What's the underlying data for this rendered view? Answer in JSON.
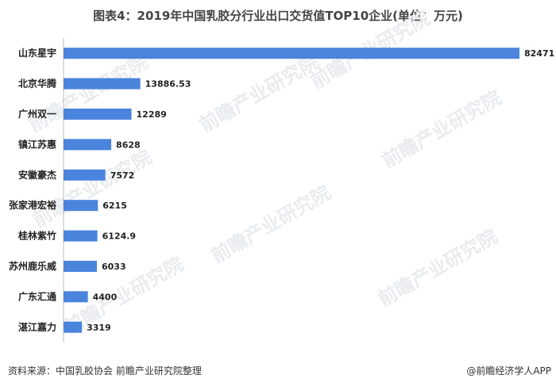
{
  "chart_data": {
    "type": "bar",
    "orientation": "horizontal",
    "title": "图表4：2019年中国乳胶分行业出口交货值TOP10企业(单位：万元)",
    "categories": [
      "山东星宇",
      "北京华腾",
      "广州双一",
      "镇江苏惠",
      "安徽豪杰",
      "张家港宏裕",
      "桂林紫竹",
      "苏州鹿乐威",
      "广东汇通",
      "湛江嘉力"
    ],
    "values": [
      82471,
      13886.53,
      12289,
      8628,
      7572,
      6215,
      6124.9,
      6033,
      4400,
      3319
    ],
    "value_labels": [
      "82471",
      "13886.53",
      "12289",
      "8628",
      "7572",
      "6215",
      "6124.9",
      "6033",
      "4400",
      "3319"
    ],
    "xlim": [
      0,
      82471
    ],
    "grid": false,
    "legend": "none",
    "bar_color": "#4a84dc"
  },
  "footer": {
    "source": "资料来源：中国乳胶协会  前瞻产业研究院整理",
    "brand": "@前瞻经济学人APP"
  },
  "watermark": {
    "text": "前瞻产业研究院"
  }
}
